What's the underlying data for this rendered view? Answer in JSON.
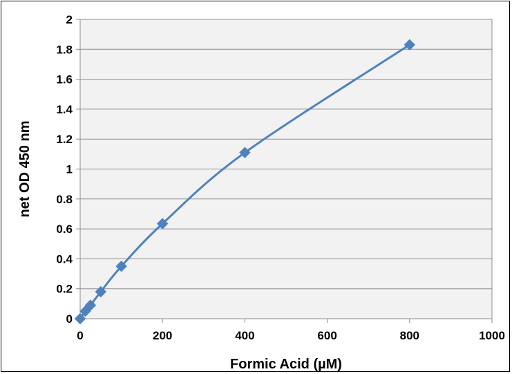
{
  "chart_data": {
    "type": "scatter",
    "xlabel": "Formic Acid (µM)",
    "ylabel": "net OD 450 nm",
    "xlim": [
      0,
      1000
    ],
    "ylim": [
      0,
      2
    ],
    "x_ticks": [
      "0",
      "200",
      "400",
      "600",
      "800",
      "1000"
    ],
    "y_ticks": [
      "0",
      "0.2",
      "0.4",
      "0.6",
      "0.8",
      "1",
      "1.2",
      "1.4",
      "1.6",
      "1.8",
      "2"
    ],
    "x_tick_values": [
      0,
      200,
      400,
      600,
      800,
      1000
    ],
    "y_tick_values": [
      0,
      0.2,
      0.4,
      0.6,
      0.8,
      1.0,
      1.2,
      1.4,
      1.6,
      1.8,
      2.0
    ],
    "grid": "horizontal",
    "legend": "none",
    "smooth_line": true,
    "marker": "diamond",
    "series": [
      {
        "x": [
          0,
          12.5,
          25,
          50,
          100,
          200,
          400,
          800
        ],
        "y": [
          0.0,
          0.05,
          0.09,
          0.18,
          0.35,
          0.635,
          1.11,
          1.83
        ]
      }
    ],
    "colors": {
      "series": "#4f81bd",
      "plot_background": "#f2f2f2",
      "gridline": "#8c8c8c"
    }
  }
}
